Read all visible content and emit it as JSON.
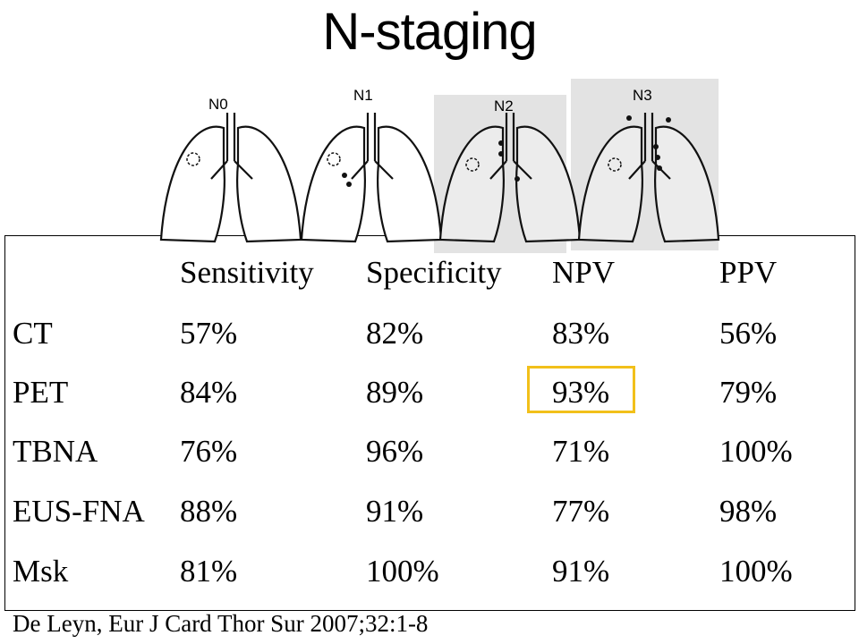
{
  "title": "N-staging",
  "stage_labels": [
    "N0",
    "N1",
    "N2",
    "N3"
  ],
  "table": {
    "headers": [
      "",
      "Sensitivity",
      "Specificity",
      "NPV",
      "PPV"
    ],
    "rows": [
      {
        "method": "CT",
        "values": [
          "57%",
          "82%",
          "83%",
          "56%"
        ]
      },
      {
        "method": "PET",
        "values": [
          "84%",
          "89%",
          "93%",
          "79%"
        ]
      },
      {
        "method": "TBNA",
        "values": [
          "76%",
          "96%",
          "71%",
          "100%"
        ]
      },
      {
        "method": "EUS-FNA",
        "values": [
          "88%",
          "91%",
          "77%",
          "98%"
        ]
      },
      {
        "method": "Msk",
        "values": [
          "81%",
          "100%",
          "91%",
          "100%"
        ]
      }
    ],
    "highlight_color": "#f2c01a"
  },
  "source": "De Leyn, Eur J Card Thor Sur 2007;32:1-8"
}
